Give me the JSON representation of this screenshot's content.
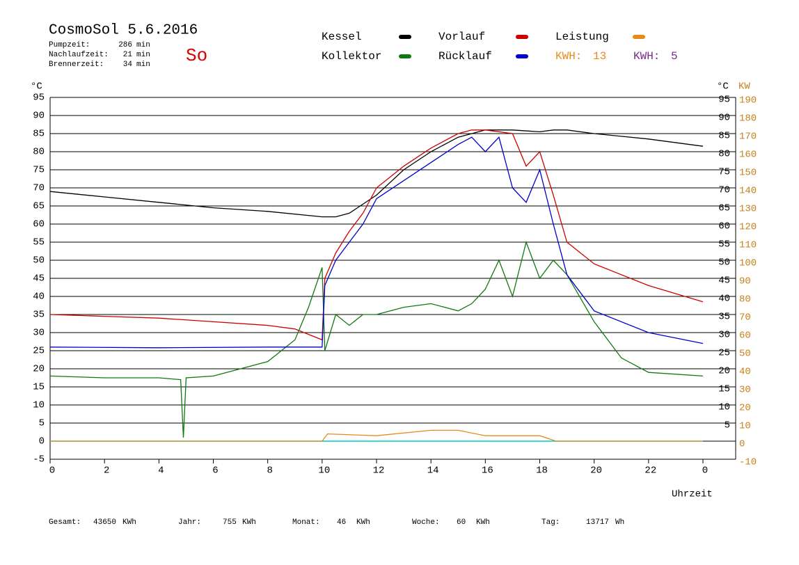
{
  "chart_data": {
    "type": "line",
    "title": "CosmoSol 5.6.2016",
    "status": "So",
    "stats": [
      {
        "label": "Pumpzeit:",
        "value": 286,
        "unit": "min"
      },
      {
        "label": "Nachlaufzeit:",
        "value": 21,
        "unit": "min"
      },
      {
        "label": "Brennerzeit:",
        "value": 34,
        "unit": "min"
      }
    ],
    "energy": [
      {
        "label": "KWH:",
        "value": 13,
        "color": "#e88a1a"
      },
      {
        "label": "KWH:",
        "value": 5,
        "color": "#7a2a8a"
      }
    ],
    "ylabel": "°C",
    "y2label": "KW",
    "xlabel": "Uhrzeit",
    "xlim": [
      0,
      24
    ],
    "xticks": [
      0,
      2,
      4,
      6,
      8,
      10,
      12,
      14,
      16,
      18,
      20,
      22,
      {
        "value": 24,
        "label": "0"
      }
    ],
    "ylim": [
      -5,
      95
    ],
    "yticks": [
      -5,
      0,
      5,
      10,
      15,
      20,
      25,
      30,
      35,
      40,
      45,
      50,
      55,
      60,
      65,
      70,
      75,
      80,
      85,
      90,
      95
    ],
    "y2lim": [
      -10,
      190
    ],
    "y2ticks": [
      -10,
      0,
      10,
      20,
      30,
      40,
      50,
      60,
      70,
      80,
      90,
      100,
      110,
      120,
      130,
      140,
      150,
      160,
      170,
      180,
      190
    ],
    "grid": true,
    "series": [
      {
        "name": "Kessel",
        "color": "#000000",
        "x": [
          0,
          2,
          4,
          6,
          8,
          10,
          10.5,
          11,
          12,
          13,
          14,
          15,
          16,
          17,
          18,
          18.5,
          19,
          20,
          22,
          24
        ],
        "values": [
          69,
          67.5,
          66,
          64.5,
          63.5,
          62,
          62,
          63,
          68,
          75,
          80,
          84,
          86,
          86,
          85.5,
          86,
          86,
          85,
          83.5,
          81.5
        ]
      },
      {
        "name": "Vorlauf",
        "color": "#cc0000",
        "x": [
          0,
          2,
          4,
          6,
          8,
          9,
          10,
          10.1,
          10.5,
          11,
          11.5,
          12,
          13,
          14,
          15,
          15.5,
          16,
          17,
          17.5,
          18,
          18.5,
          19,
          20,
          22,
          24
        ],
        "values": [
          35,
          34.5,
          34,
          33,
          32,
          31,
          28,
          45,
          52,
          58,
          63,
          70,
          76,
          81,
          85,
          86,
          86,
          85,
          76,
          80,
          68,
          55,
          49,
          43,
          38.5
        ]
      },
      {
        "name": "Leistung",
        "color": "#e88a1a",
        "axis": "y2",
        "x": [
          0,
          10,
          10.2,
          12,
          14,
          15,
          16,
          18,
          18.6,
          24
        ],
        "values": [
          0,
          0,
          4,
          3,
          6,
          6,
          3,
          3,
          0,
          0
        ]
      },
      {
        "name": "Kollektor",
        "color": "#117711",
        "x": [
          0,
          2,
          4,
          4.8,
          4.9,
          5,
          6,
          8,
          9,
          9.5,
          10,
          10.1,
          10.5,
          11,
          11.5,
          12,
          13,
          14,
          15,
          15.5,
          16,
          16.5,
          17,
          17.5,
          18,
          18.5,
          19,
          20,
          21,
          22,
          24
        ],
        "values": [
          18,
          17.5,
          17.5,
          17,
          1,
          17.5,
          18,
          22,
          28,
          37,
          48,
          25,
          35,
          32,
          35,
          35,
          37,
          38,
          36,
          38,
          42,
          50,
          40,
          55,
          45,
          50,
          46,
          33,
          23,
          19,
          18
        ]
      },
      {
        "name": "Rücklauf",
        "color": "#0000cc",
        "x": [
          0,
          4,
          8,
          10,
          10.1,
          10.5,
          11,
          11.5,
          12,
          13,
          14,
          15,
          15.5,
          16,
          16.5,
          17,
          17.5,
          18,
          18.5,
          19,
          20,
          22,
          24
        ],
        "values": [
          26,
          25.8,
          26,
          26,
          43,
          50,
          55,
          60,
          67,
          72,
          77,
          82,
          84,
          80,
          84,
          70,
          66,
          75,
          60,
          46,
          36,
          30,
          27
        ]
      }
    ],
    "footer": [
      {
        "label": "Gesamt:",
        "value": 43650,
        "unit": "KWh"
      },
      {
        "label": "Jahr:",
        "value": 755,
        "unit": "KWh"
      },
      {
        "label": "Monat:",
        "value": 46,
        "unit": "KWh"
      },
      {
        "label": "Woche:",
        "value": 60,
        "unit": "KWh"
      },
      {
        "label": "Tag:",
        "value": 13717,
        "unit": "Wh"
      }
    ]
  }
}
